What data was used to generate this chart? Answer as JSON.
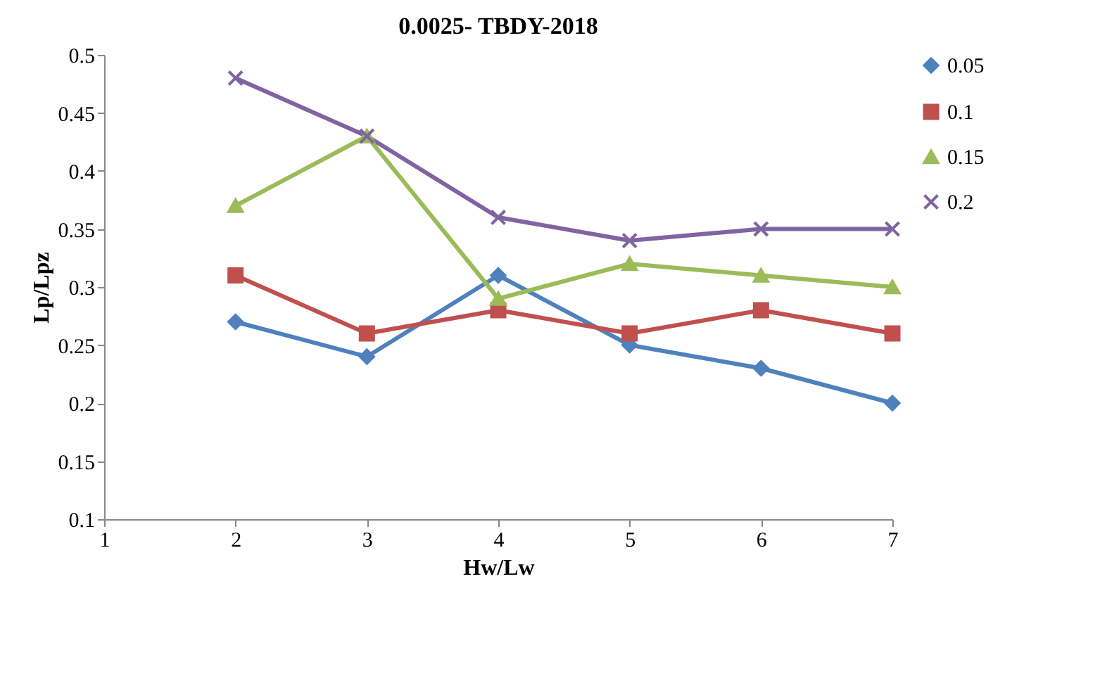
{
  "chart_data": {
    "type": "line",
    "title": "0.0025- TBDY-2018",
    "xlabel": "Hw/Lw",
    "ylabel": "Lp/Lpz",
    "x": [
      2,
      3,
      4,
      5,
      6,
      7
    ],
    "xlim": [
      1,
      7
    ],
    "xticks": [
      1,
      2,
      3,
      4,
      5,
      6,
      7
    ],
    "ylim": [
      0.1,
      0.5
    ],
    "yticks": [
      0.1,
      0.15,
      0.2,
      0.25,
      0.3,
      0.35,
      0.4,
      0.45,
      0.5
    ],
    "grid": false,
    "legend": "right",
    "line_style": "solid",
    "series": [
      {
        "name": "0.05",
        "color": "#4f81bd",
        "marker": "diamond",
        "values": [
          0.27,
          0.24,
          0.31,
          0.25,
          0.23,
          0.2
        ]
      },
      {
        "name": "0.1",
        "color": "#c0504d",
        "marker": "square",
        "values": [
          0.31,
          0.26,
          0.28,
          0.26,
          0.28,
          0.26
        ]
      },
      {
        "name": "0.15",
        "color": "#9bbb59",
        "marker": "triangle",
        "values": [
          0.37,
          0.43,
          0.29,
          0.32,
          0.31,
          0.3
        ]
      },
      {
        "name": "0.2",
        "color": "#8064a2",
        "marker": "cross",
        "values": [
          0.48,
          0.43,
          0.36,
          0.34,
          0.35,
          0.35
        ]
      }
    ]
  }
}
